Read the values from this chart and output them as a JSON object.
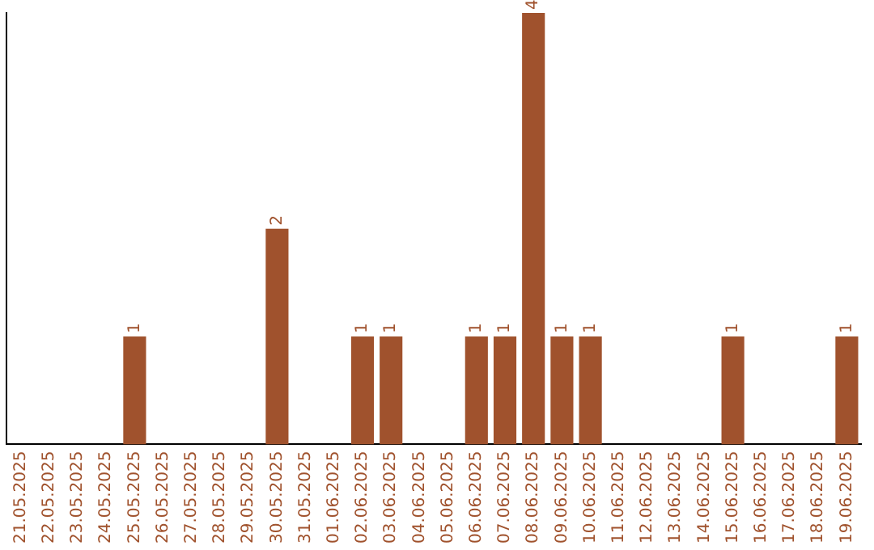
{
  "chart_data": {
    "type": "bar",
    "categories": [
      "21.05.2025",
      "22.05.2025",
      "23.05.2025",
      "24.05.2025",
      "25.05.2025",
      "26.05.2025",
      "27.05.2025",
      "28.05.2025",
      "29.05.2025",
      "30.05.2025",
      "31.05.2025",
      "01.06.2025",
      "02.06.2025",
      "03.06.2025",
      "04.06.2025",
      "05.06.2025",
      "06.06.2025",
      "07.06.2025",
      "08.06.2025",
      "09.06.2025",
      "10.06.2025",
      "11.06.2025",
      "12.06.2025",
      "13.06.2025",
      "14.06.2025",
      "15.06.2025",
      "16.06.2025",
      "17.06.2025",
      "18.06.2025",
      "19.06.2025"
    ],
    "values": [
      0,
      0,
      0,
      0,
      1,
      0,
      0,
      0,
      0,
      2,
      0,
      0,
      1,
      1,
      0,
      0,
      1,
      1,
      4,
      1,
      1,
      0,
      0,
      0,
      0,
      1,
      0,
      0,
      0,
      1
    ],
    "value_labels": [
      null,
      null,
      null,
      null,
      "1",
      null,
      null,
      null,
      null,
      "2",
      null,
      null,
      "1",
      "1",
      null,
      null,
      "1",
      "1",
      "4",
      "1",
      "1",
      null,
      null,
      null,
      null,
      "1",
      null,
      null,
      null,
      "1"
    ],
    "color": "#a0522d",
    "ylim": [
      0,
      4
    ],
    "tick_labels": "x",
    "grid": false,
    "legend": false
  }
}
